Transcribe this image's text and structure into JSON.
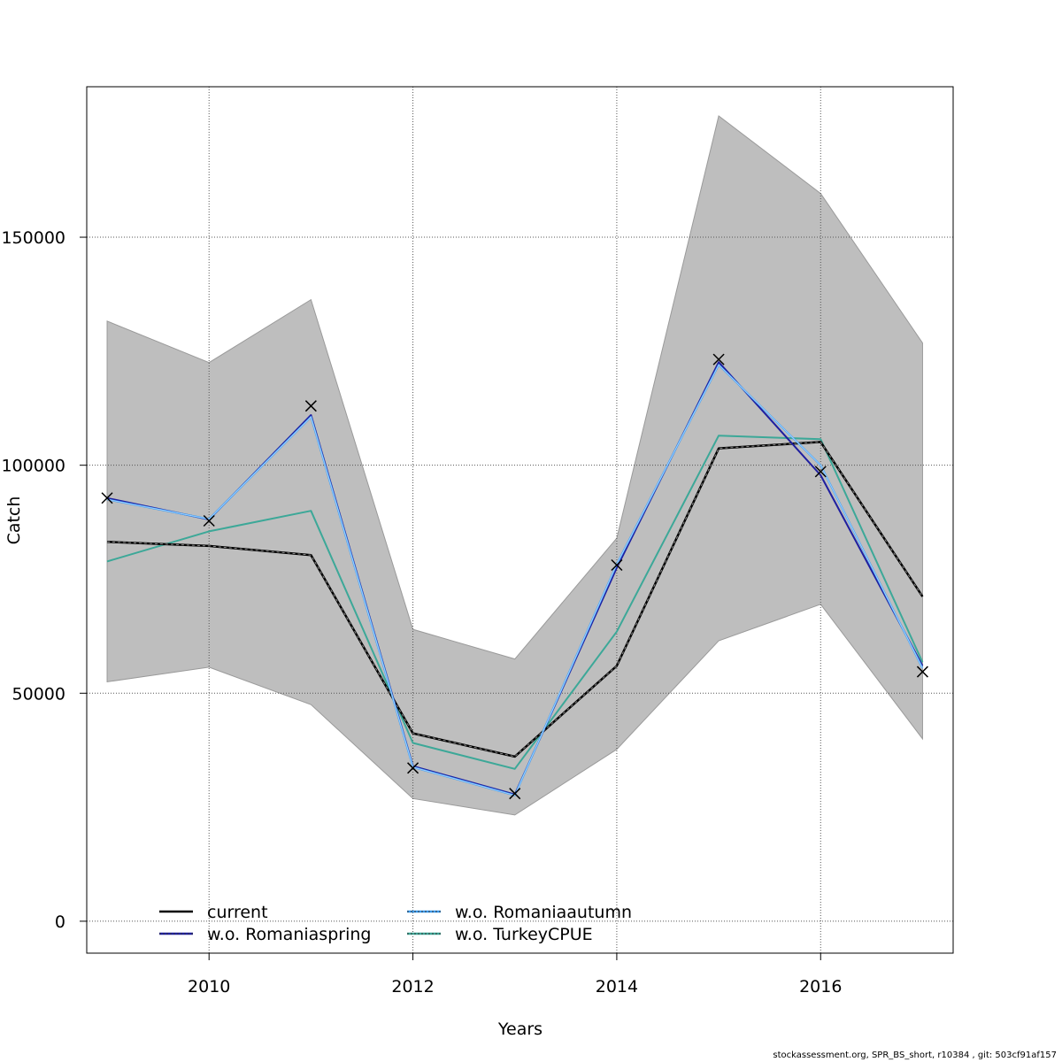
{
  "chart_data": {
    "type": "line",
    "xlabel": "Years",
    "ylabel": "Catch",
    "xlim": [
      2008.8,
      2017.3
    ],
    "ylim": [
      -7000,
      183000
    ],
    "x_ticks": [
      2010,
      2012,
      2014,
      2016
    ],
    "x_tick_labels": [
      "2010",
      "2012",
      "2014",
      "2016"
    ],
    "y_ticks": [
      0,
      50000,
      100000,
      150000
    ],
    "y_tick_labels": [
      "0",
      "50000",
      "100000",
      "150000"
    ],
    "grid": true,
    "legend_position": "bottom-left",
    "x": [
      2009,
      2010,
      2011,
      2012,
      2013,
      2014,
      2015,
      2016,
      2017
    ],
    "confidence_band": {
      "color": "#bebebe",
      "lower": [
        52500,
        55700,
        47500,
        26900,
        23300,
        37700,
        61500,
        69500,
        40000
      ],
      "upper": [
        131600,
        122500,
        136300,
        64000,
        57500,
        84000,
        176600,
        159600,
        126800
      ]
    },
    "series": [
      {
        "name": "current",
        "color": "#000000",
        "values": [
          83200,
          82300,
          80300,
          41200,
          36100,
          56000,
          103700,
          105100,
          71200
        ]
      },
      {
        "name": "w.o. Romaniaspring",
        "color": "#1e1ea0",
        "values": [
          92800,
          88100,
          111000,
          34000,
          27800,
          77500,
          122600,
          97800,
          56000
        ]
      },
      {
        "name": "w.o. Romaniaautumn",
        "color": "#3c9cf0",
        "values": [
          92500,
          88200,
          110600,
          33800,
          27600,
          78300,
          122000,
          100000,
          55500
        ]
      },
      {
        "name": "w.o. TurkeyCPUE",
        "color": "#3ca898",
        "values": [
          78900,
          85500,
          90000,
          39100,
          33400,
          63500,
          106500,
          105700,
          56800
        ]
      }
    ],
    "observed": {
      "marker": "x",
      "values": [
        92800,
        87800,
        113000,
        33600,
        28000,
        78100,
        123200,
        98600,
        54700
      ]
    }
  },
  "footer": "stockassessment.org, SPR_BS_short, r10384 , git: 503cf91af157"
}
